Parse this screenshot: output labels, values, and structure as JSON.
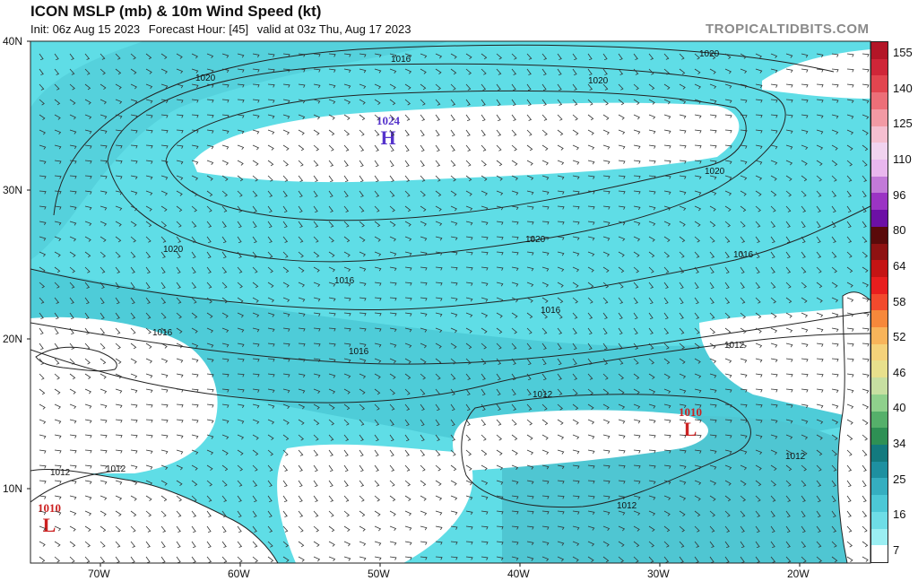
{
  "header": {
    "title": "ICON MSLP (mb) & 10m Wind Speed (kt)",
    "init": "Init: 06z Aug 15 2023",
    "forecast_hour": "Forecast Hour: [45]",
    "valid": "valid at 03z Thu, Aug 17 2023",
    "brand": "TROPICALTIDBITS.COM"
  },
  "map": {
    "lat_labels": [
      "40N",
      "30N",
      "20N",
      "10N"
    ],
    "lon_labels": [
      "70W",
      "60W",
      "50W",
      "40W",
      "30W",
      "20W"
    ],
    "pressure_centers": [
      {
        "type": "H",
        "value": "1024",
        "color": "#5533cc"
      },
      {
        "type": "L",
        "value": "1010",
        "color": "#cc2222"
      },
      {
        "type": "L",
        "value": "1010",
        "color": "#cc2222"
      }
    ],
    "isobar_labels": [
      "1020",
      "1016",
      "1020",
      "1020",
      "1020",
      "1020",
      "1020",
      "1016",
      "1016",
      "1016",
      "1016",
      "1012",
      "1012",
      "1012",
      "1012",
      "1012",
      "1012",
      "1016"
    ],
    "shading_color": "#5fdde6"
  },
  "colorbar": {
    "labels": [
      "155",
      "140",
      "125",
      "110",
      "96",
      "80",
      "64",
      "58",
      "52",
      "46",
      "40",
      "34",
      "25",
      "16",
      "7"
    ],
    "colors": [
      "#b31627",
      "#cf2638",
      "#e2454f",
      "#ec6f78",
      "#f29aa4",
      "#f5bfd0",
      "#f1d3ef",
      "#e9b7ee",
      "#c27ad8",
      "#9b34c4",
      "#6c10a5",
      "#5a0a0a",
      "#8e1212",
      "#c41414",
      "#e81e1e",
      "#f24a2d",
      "#f6883b",
      "#f8b45a",
      "#f5d27a",
      "#e8e08c",
      "#c7dfa1",
      "#8fd08c",
      "#55b06a",
      "#2e9054",
      "#137a7e",
      "#1e90a0",
      "#35aec0",
      "#4cc8d6",
      "#6edde6",
      "#9beef2",
      "#ffffff"
    ]
  }
}
